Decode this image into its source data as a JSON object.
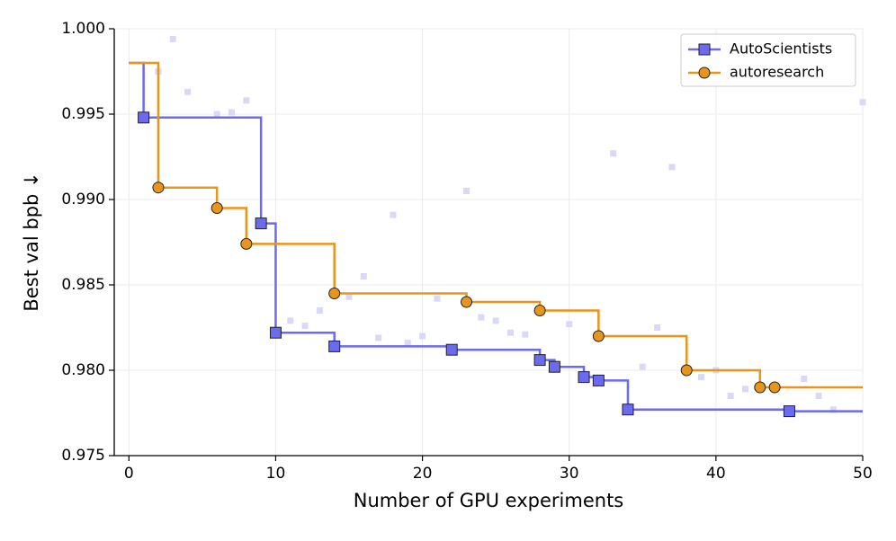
{
  "chart_data": {
    "type": "step",
    "xlabel": "Number of GPU experiments",
    "ylabel": "Best val bpb ↓",
    "xlim": [
      -1,
      50
    ],
    "xticks": [
      0,
      10,
      20,
      30,
      40,
      50
    ],
    "ylim": [
      0.975,
      1.0
    ],
    "yticks": [
      0.975,
      {
        "value": 0.98,
        "label": "0.980"
      },
      0.985,
      {
        "value": 0.99,
        "label": "0.990"
      },
      0.995,
      {
        "value": 1.0,
        "label": "1.000"
      }
    ],
    "grid": true,
    "legend": "upper right",
    "points": {
      "color": "#d9d9f7",
      "x": [
        2,
        3,
        4,
        6,
        7,
        8,
        11,
        12,
        13,
        15,
        16,
        17,
        18,
        19,
        20,
        21,
        23,
        24,
        25,
        26,
        27,
        30,
        33,
        35,
        36,
        37,
        39,
        40,
        41,
        42,
        46,
        47,
        48,
        50
      ],
      "values": [
        0.9975,
        0.9994,
        0.9963,
        0.995,
        0.9951,
        0.9958,
        0.9829,
        0.9826,
        0.9835,
        0.9843,
        0.9855,
        0.9819,
        0.9891,
        0.9816,
        0.982,
        0.9842,
        0.9905,
        0.9831,
        0.9829,
        0.9822,
        0.9821,
        0.9827,
        0.9927,
        0.9802,
        0.9825,
        0.9919,
        0.9796,
        0.98,
        0.9785,
        0.9789,
        0.9795,
        0.9785,
        0.9777,
        0.9957
      ]
    },
    "series": [
      {
        "name": "AutoScientists",
        "color": "#6b6bef",
        "marker": "square",
        "x": [
          0,
          1,
          9,
          10,
          14,
          22,
          28,
          29,
          31,
          32,
          34,
          45
        ],
        "values": [
          0.998,
          0.9948,
          0.9886,
          0.9822,
          0.9814,
          0.9812,
          0.9806,
          0.9802,
          0.9796,
          0.9794,
          0.9777,
          0.9776
        ]
      },
      {
        "name": "autoresearch",
        "color": "#e8951c",
        "marker": "circle",
        "x": [
          0,
          2,
          6,
          8,
          14,
          23,
          28,
          32,
          38,
          43,
          44
        ],
        "values": [
          0.998,
          0.9907,
          0.9895,
          0.9874,
          0.9845,
          0.984,
          0.9835,
          0.982,
          0.98,
          0.979,
          0.979
        ]
      }
    ]
  }
}
